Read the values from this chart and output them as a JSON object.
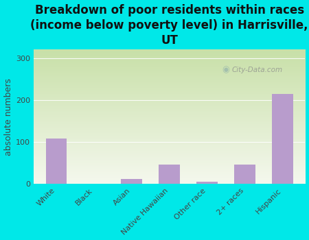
{
  "title": "Breakdown of poor residents within races\n(income below poverty level) in Harrisville,\nUT",
  "categories": [
    "White",
    "Black",
    "Asian",
    "Native Hawaiian",
    "Other race",
    "2+ races",
    "Hispanic"
  ],
  "values": [
    108,
    0,
    12,
    45,
    5,
    45,
    215
  ],
  "bar_color": "#b89ccc",
  "ylabel": "absolute numbers",
  "ylim": [
    0,
    320
  ],
  "yticks": [
    0,
    100,
    200,
    300
  ],
  "background_color": "#00e8e8",
  "plot_bg_top_left": "#b8d8a0",
  "plot_bg_bottom_right": "#f5f8ee",
  "grid_line_color": "#cccccc",
  "watermark": "City-Data.com",
  "title_fontsize": 12,
  "ylabel_fontsize": 9,
  "tick_fontsize": 8,
  "title_color": "#111111"
}
